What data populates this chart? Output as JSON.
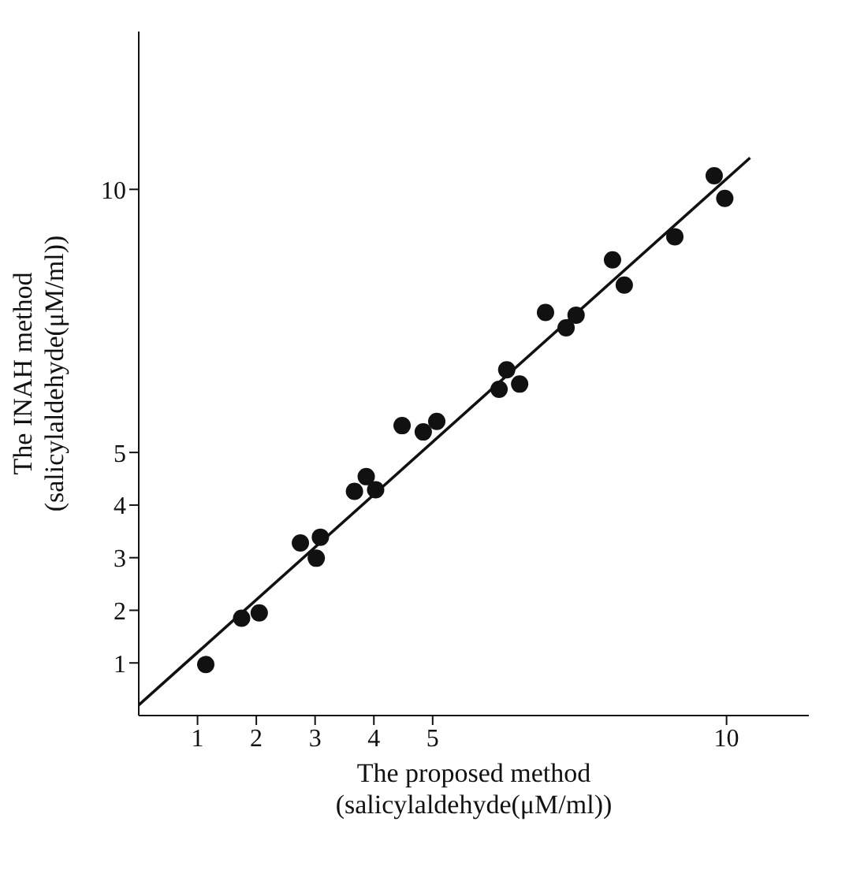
{
  "chart_data": {
    "type": "scatter",
    "xlabel": "The proposed method\n(salicylaldehyde(μM/ml))",
    "ylabel": "The INAH method\n(salicylaldehyde(μM/ml))",
    "xlim": [
      0,
      11.4
    ],
    "ylim": [
      0,
      13
    ],
    "xticks": [
      1,
      2,
      3,
      4,
      5,
      10
    ],
    "yticks": [
      1,
      2,
      3,
      4,
      5,
      10
    ],
    "grid": false,
    "series": [
      {
        "marker": "circle",
        "color": "#111111",
        "x": [
          1.14,
          1.75,
          2.05,
          2.75,
          3.09,
          3.02,
          3.67,
          3.87,
          4.03,
          4.48,
          4.84,
          5.07,
          6.13,
          6.26,
          6.48,
          6.92,
          7.27,
          7.44,
          8.06,
          8.26,
          9.12,
          9.79,
          9.97
        ],
        "values": [
          0.97,
          1.85,
          1.95,
          3.28,
          3.39,
          2.99,
          4.26,
          4.54,
          4.29,
          5.51,
          5.39,
          5.59,
          6.2,
          6.57,
          6.3,
          7.66,
          7.37,
          7.61,
          8.66,
          8.18,
          9.1,
          10.26,
          9.83
        ]
      },
      {
        "type": "line",
        "marker": "none",
        "color": "#111111",
        "x": [
          0,
          10.4
        ],
        "values": [
          0.2,
          10.6
        ]
      }
    ]
  }
}
